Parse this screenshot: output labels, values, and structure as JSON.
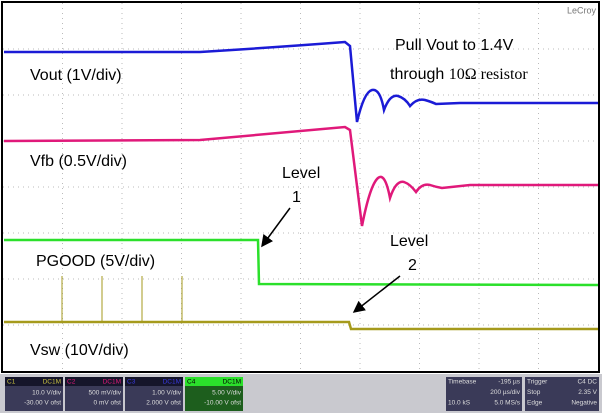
{
  "logo": "LeCroy",
  "annotation": {
    "line1": "Pull Vout to 1.4V",
    "line2a": "through",
    "line2b": "10Ω resistor"
  },
  "traces": [
    {
      "label": "Vout (1V/div)"
    },
    {
      "label": "Vfb (0.5V/div)"
    },
    {
      "label": "PGOOD (5V/div)"
    },
    {
      "label": "Vsw (10V/div)"
    }
  ],
  "levels": [
    {
      "line1": "Level",
      "line2": "1"
    },
    {
      "line1": "Level",
      "line2": "2"
    }
  ],
  "status": {
    "channels": [
      {
        "id": "C1",
        "coupling": "DC1M",
        "scale": "10.0 V/div",
        "offset": "-30.00 V ofst"
      },
      {
        "id": "C2",
        "coupling": "DC1M",
        "scale": "500 mV/div",
        "offset": "0 mV ofst"
      },
      {
        "id": "C3",
        "coupling": "DC1M",
        "scale": "1.00 V/div",
        "offset": "2.000 V ofst"
      },
      {
        "id": "C4",
        "coupling": "DC1M",
        "scale": "5.00 V/div",
        "offset": "-10.00 V ofst"
      }
    ],
    "timebase": {
      "title": "Timebase",
      "delay": "-195 µs",
      "scale": "200 µs/div",
      "samples": "10.0 kS",
      "rate": "5.0 MS/s"
    },
    "trigger": {
      "title": "Trigger",
      "source": "C4 DC",
      "mode": "Stop",
      "level": "2.35 V",
      "type": "Edge",
      "slope": "Negative"
    }
  }
}
